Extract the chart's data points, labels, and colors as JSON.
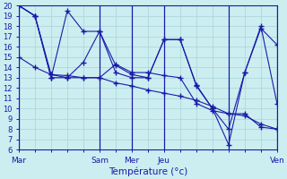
{
  "background_color": "#cceef0",
  "grid_color": "#a8d4d8",
  "line_color": "#1a1aaa",
  "xlabel": "Température (°c)",
  "ylim": [
    6,
    20
  ],
  "yticks": [
    6,
    7,
    8,
    9,
    10,
    11,
    12,
    13,
    14,
    15,
    16,
    17,
    18,
    19,
    20
  ],
  "xlim": [
    0,
    16
  ],
  "x_tick_positions": [
    0,
    5,
    7,
    9,
    13,
    16
  ],
  "x_tick_labels": [
    "Mar",
    "Sam",
    "Mer",
    "Jeu",
    "",
    "Ven"
  ],
  "n_points": 17,
  "lines": [
    [
      20.0,
      19.0,
      13.0,
      19.5,
      17.5,
      17.5,
      14.2,
      13.3,
      13.0,
      16.7,
      16.7,
      12.3,
      10.0,
      8.0,
      13.5,
      17.8,
      16.2
    ],
    [
      20.0,
      19.0,
      13.3,
      13.0,
      13.0,
      13.0,
      14.3,
      13.5,
      13.5,
      13.2,
      13.0,
      10.5,
      9.8,
      9.5,
      9.5,
      8.2,
      8.0
    ],
    [
      15.0,
      14.0,
      13.3,
      13.2,
      13.0,
      13.0,
      12.5,
      12.2,
      11.8,
      11.5,
      11.2,
      10.8,
      10.2,
      9.5,
      9.3,
      8.5,
      8.0
    ],
    [
      20.0,
      19.0,
      13.0,
      13.0,
      14.5,
      17.5,
      13.5,
      13.0,
      13.0,
      16.7,
      16.7,
      12.2,
      10.0,
      6.5,
      13.5,
      18.0,
      10.5
    ]
  ]
}
